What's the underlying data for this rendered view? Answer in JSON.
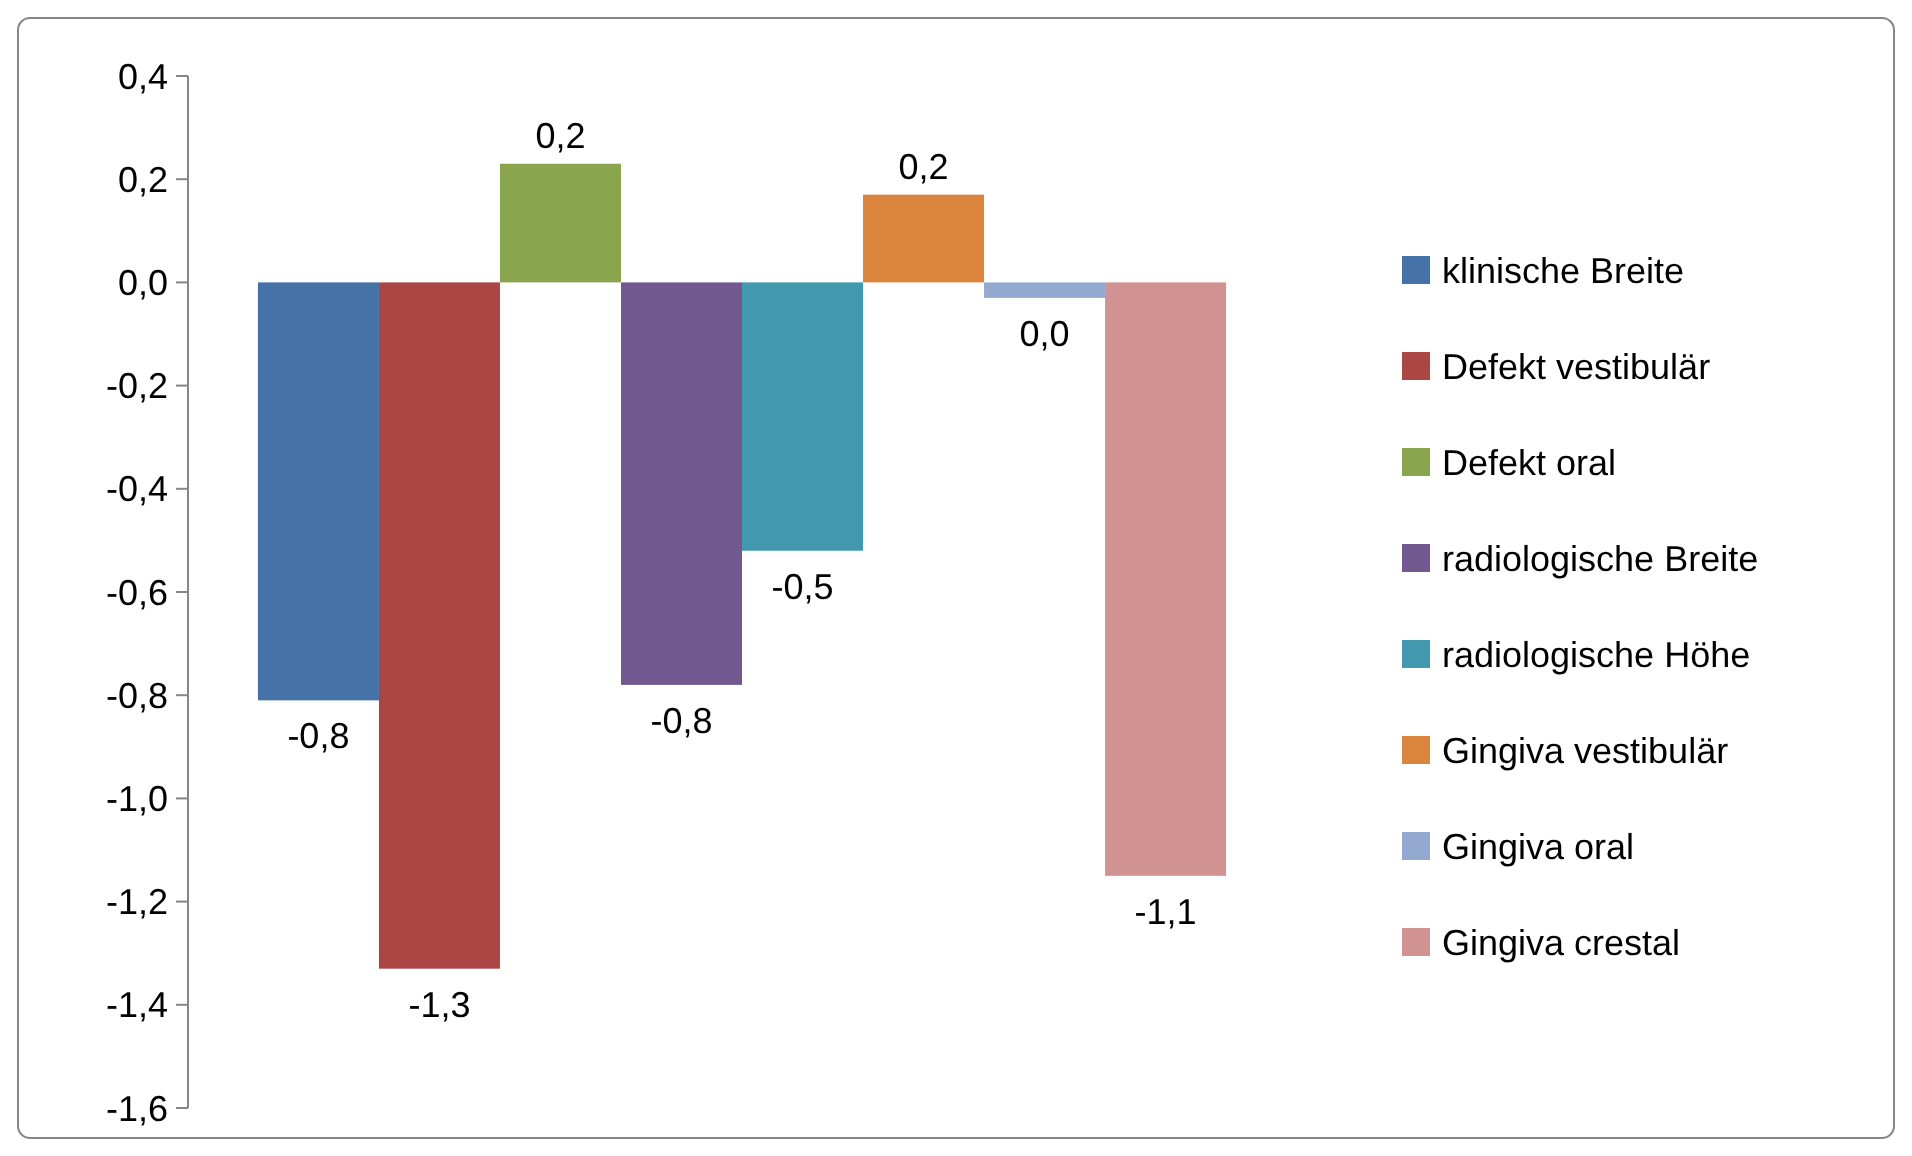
{
  "chart_data": {
    "type": "bar",
    "categories": [
      null
    ],
    "series": [
      {
        "name": "klinische Breite",
        "color": "#4572a7",
        "values": [
          -0.81
        ],
        "value_labels": [
          "-0,8"
        ]
      },
      {
        "name": "Defekt vestibulär",
        "color": "#aa4643",
        "values": [
          -1.33
        ],
        "value_labels": [
          "-1,3"
        ]
      },
      {
        "name": "Defekt oral",
        "color": "#89a54e",
        "values": [
          0.23
        ],
        "value_labels": [
          "0,2"
        ]
      },
      {
        "name": "radiologische Breite",
        "color": "#71588f",
        "values": [
          -0.78
        ],
        "value_labels": [
          "-0,8"
        ]
      },
      {
        "name": "radiologische Höhe",
        "color": "#4198af",
        "values": [
          -0.52
        ],
        "value_labels": [
          "-0,5"
        ]
      },
      {
        "name": "Gingiva vestibulär",
        "color": "#db843d",
        "values": [
          0.17
        ],
        "value_labels": [
          "0,2"
        ]
      },
      {
        "name": "Gingiva oral",
        "color": "#93a9cf",
        "values": [
          -0.03
        ],
        "value_labels": [
          "0,0"
        ]
      },
      {
        "name": "Gingiva crestal",
        "color": "#d19392",
        "values": [
          -1.15
        ],
        "value_labels": [
          "-1,1"
        ]
      }
    ],
    "ylim": [
      -1.6,
      0.4
    ],
    "yticks": [
      {
        "value": 0.4,
        "label": "0,4"
      },
      {
        "value": 0.2,
        "label": "0,2"
      },
      {
        "value": 0,
        "label": "0,0"
      },
      {
        "value": -0.2,
        "label": "-0,2"
      },
      {
        "value": -0.4,
        "label": "-0,4"
      },
      {
        "value": -0.6,
        "label": "-0,6"
      },
      {
        "value": -0.8,
        "label": "-0,8"
      },
      {
        "value": -1.0,
        "label": "-1,0"
      },
      {
        "value": -1.2,
        "label": "-1,2"
      },
      {
        "value": -1.4,
        "label": "-1,4"
      },
      {
        "value": -1.6,
        "label": "-1,6"
      }
    ],
    "grid": false,
    "legend": "right"
  }
}
